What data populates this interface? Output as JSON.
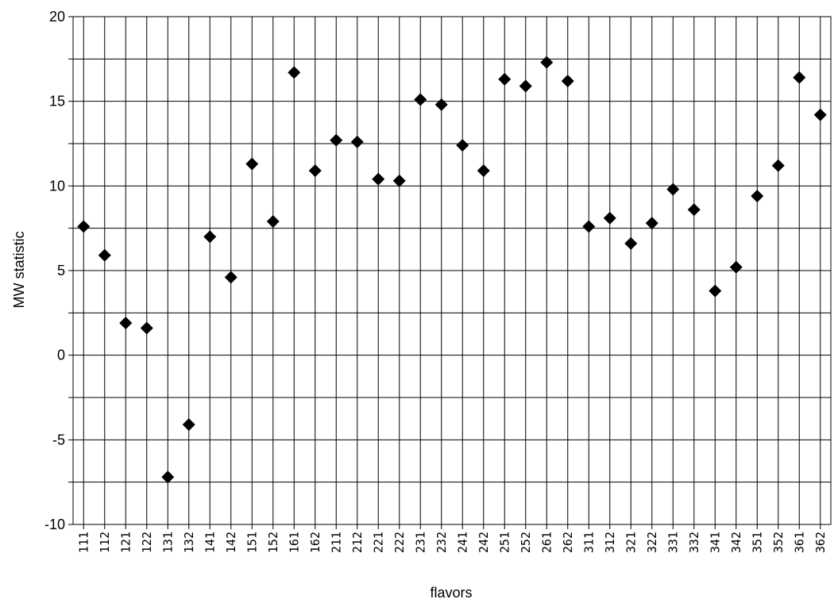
{
  "chart_data": {
    "type": "scatter",
    "title": "",
    "xlabel": "flavors",
    "ylabel": "MW statistic",
    "ylim": [
      -10,
      20
    ],
    "yticks": [
      -10,
      -5,
      0,
      5,
      10,
      15,
      20
    ],
    "grid": true,
    "marker": "diamond",
    "marker_color": "#000000",
    "categories": [
      "111",
      "112",
      "121",
      "122",
      "131",
      "132",
      "141",
      "142",
      "151",
      "152",
      "161",
      "162",
      "211",
      "212",
      "221",
      "222",
      "231",
      "232",
      "241",
      "242",
      "251",
      "252",
      "261",
      "262",
      "311",
      "312",
      "321",
      "322",
      "331",
      "332",
      "341",
      "342",
      "351",
      "352",
      "361",
      "362"
    ],
    "series": [
      {
        "values": [
          7.6,
          5.9,
          1.9,
          1.6,
          -7.2,
          -4.1,
          7.0,
          4.6,
          11.3,
          7.9,
          16.7,
          10.9,
          12.7,
          12.6,
          10.4,
          10.3,
          15.1,
          14.8,
          12.4,
          10.9,
          16.3,
          15.9,
          17.3,
          16.2,
          7.6,
          8.1,
          6.6,
          7.8,
          9.8,
          8.6,
          3.8,
          5.2,
          9.4,
          11.2,
          16.4,
          14.2
        ]
      }
    ]
  }
}
